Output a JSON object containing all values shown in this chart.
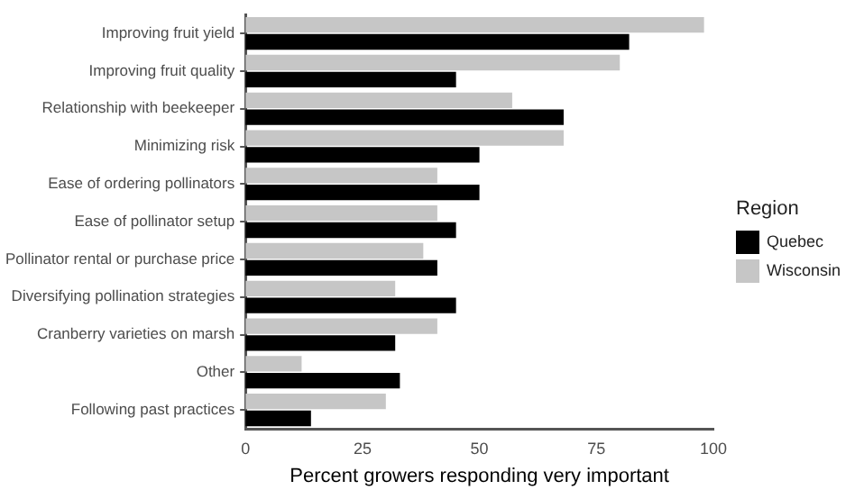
{
  "chart_data": {
    "type": "bar",
    "orientation": "horizontal",
    "xlabel": "Percent growers responding very important",
    "legend_title": "Region",
    "legend": "right",
    "grid": false,
    "categories": [
      "Improving fruit yield",
      "Improving fruit quality",
      "Relationship with beekeeper",
      "Minimizing risk",
      "Ease of ordering pollinators",
      "Ease of pollinator setup",
      "Pollinator rental or purchase price",
      "Diversifying pollination strategies",
      "Cranberry varieties on marsh",
      "Other",
      "Following past practices"
    ],
    "series": [
      {
        "name": "Quebec",
        "color": "#000000",
        "values": [
          82,
          45,
          68,
          50,
          50,
          45,
          41,
          45,
          32,
          33,
          14
        ]
      },
      {
        "name": "Wisconsin",
        "color": "#c6c6c6",
        "values": [
          98,
          80,
          57,
          68,
          41,
          41,
          38,
          32,
          41,
          12,
          30
        ]
      }
    ],
    "xlim": [
      0,
      100
    ],
    "xticks": [
      0,
      25,
      50,
      75,
      100
    ]
  }
}
